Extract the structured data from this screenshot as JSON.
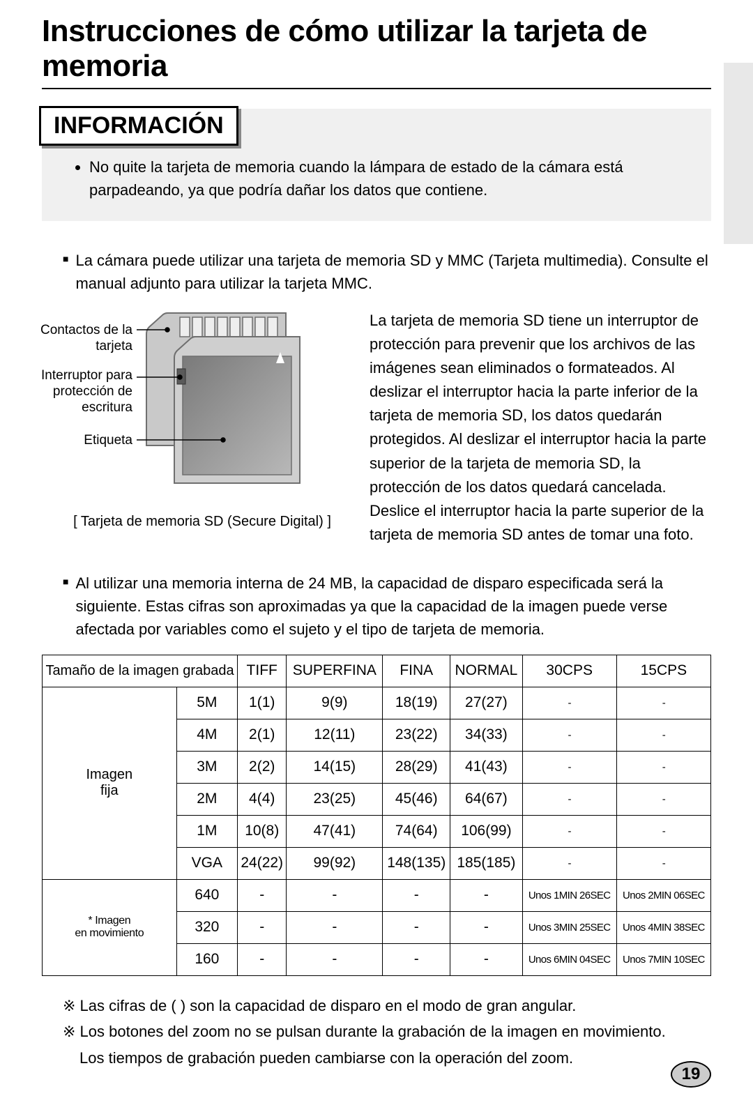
{
  "title": "Instrucciones de cómo utilizar la tarjeta de memoria",
  "side_tab_color": "#e8e8e8",
  "info": {
    "heading": "INFORMACIÓN",
    "bullet": "No quite la tarjeta de memoria cuando la lámpara de estado de la cámara está parpadeando, ya que podría dañar los datos que contiene."
  },
  "block1": "La cámara puede utilizar una tarjeta de memoria SD y MMC (Tarjeta multimedia). Consulte el manual adjunto para utilizar la tarjeta MMC.",
  "figure": {
    "label_contacts": "Contactos de la tarjeta",
    "label_switch": "Interruptor para protección de escritura",
    "label_etiqueta": "Etiqueta",
    "caption": "[ Tarjeta de memoria SD (Secure Digital) ]",
    "colors": {
      "card_body": "#c9c9c9",
      "card_edge": "#6f6f6f",
      "contacts": "#e6e6e6",
      "front_grad_top": "#7a7a7a",
      "front_grad_bot": "#a8a8a8",
      "triangle": "#ffffff"
    }
  },
  "para_right": "La tarjeta de memoria SD tiene un interruptor de protección para prevenir que los archivos de las imágenes sean eliminados o formateados. Al deslizar el interruptor hacia la parte inferior de la tarjeta de memoria SD, los datos quedarán protegidos. Al deslizar el interruptor hacia la parte superior de la tarjeta de memoria SD, la protección de los datos quedará cancelada. Deslice el interruptor hacia la parte superior de la tarjeta de memoria SD antes de tomar una foto.",
  "block2": "Al utilizar una memoria interna de 24 MB, la capacidad de disparo especificada será la siguiente. Estas cifras son aproximadas ya que la capacidad de la imagen puede verse afectada por variables como el sujeto y el tipo de tarjeta de memoria.",
  "table": {
    "header_first": "Tamaño de la imagen grabada",
    "headers": [
      "TIFF",
      "SUPERFINA",
      "FINA",
      "NORMAL",
      "30CPS",
      "15CPS"
    ],
    "group_still": "Imagen fija",
    "group_movie": "* Imagen en movimiento",
    "still_rows": [
      {
        "size": "5M",
        "cells": [
          "1(1)",
          "9(9)",
          "18(19)",
          "27(27)",
          "-",
          "-"
        ]
      },
      {
        "size": "4M",
        "cells": [
          "2(1)",
          "12(11)",
          "23(22)",
          "34(33)",
          "-",
          "-"
        ]
      },
      {
        "size": "3M",
        "cells": [
          "2(2)",
          "14(15)",
          "28(29)",
          "41(43)",
          "-",
          "-"
        ]
      },
      {
        "size": "2M",
        "cells": [
          "4(4)",
          "23(25)",
          "45(46)",
          "64(67)",
          "-",
          "-"
        ]
      },
      {
        "size": "1M",
        "cells": [
          "10(8)",
          "47(41)",
          "74(64)",
          "106(99)",
          "-",
          "-"
        ]
      },
      {
        "size": "VGA",
        "cells": [
          "24(22)",
          "99(92)",
          "148(135)",
          "185(185)",
          "-",
          "-"
        ]
      }
    ],
    "movie_rows": [
      {
        "size": "640",
        "cells": [
          "-",
          "-",
          "-",
          "-",
          "Unos 1MIN 26SEC",
          "Unos 2MIN 06SEC"
        ]
      },
      {
        "size": "320",
        "cells": [
          "-",
          "-",
          "-",
          "-",
          "Unos 3MIN 25SEC",
          "Unos 4MIN 38SEC"
        ]
      },
      {
        "size": "160",
        "cells": [
          "-",
          "-",
          "-",
          "-",
          "Unos 6MIN 04SEC",
          "Unos 7MIN 10SEC"
        ]
      }
    ],
    "small_idx": [
      4,
      5
    ]
  },
  "notes": {
    "n1": "Las cifras de (    ) son la capacidad de disparo en el modo de gran angular.",
    "n2": "Los botones del zoom no se pulsan durante la grabación de la imagen en movimiento.",
    "n3": "Los tiempos de grabación pueden cambiarse con la operación del zoom."
  },
  "page_number": "19"
}
